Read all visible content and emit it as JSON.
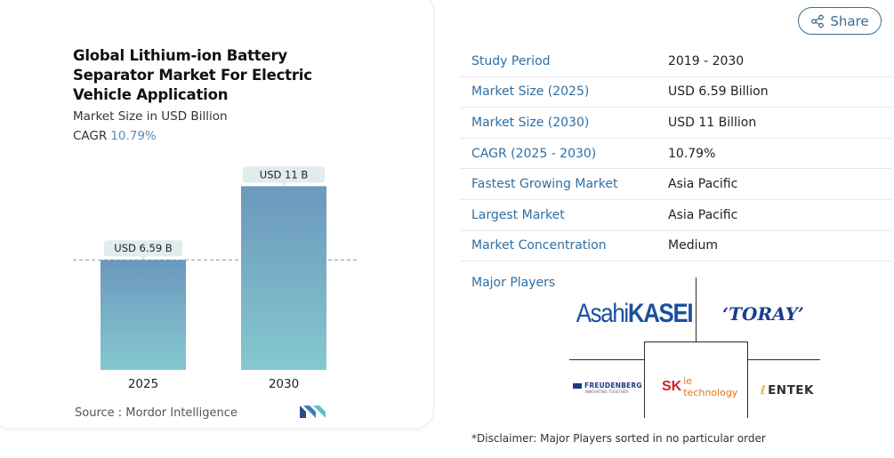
{
  "share": {
    "label": "Share",
    "icon": "share-icon"
  },
  "chart_card": {
    "title": "Global Lithium-ion Battery Separator Market For Electric Vehicle Application",
    "subtitle": "Market Size in USD Billion",
    "cagr_label": "CAGR",
    "cagr_value": "10.79%",
    "source": "Source : Mordor Intelligence",
    "logo": "mordor-intelligence-logo"
  },
  "chart_data": {
    "type": "bar",
    "categories": [
      "2025",
      "2030"
    ],
    "values": [
      6.59,
      11
    ],
    "data_labels": [
      "USD 6.59 B",
      "USD 11 B"
    ],
    "title": "Global Lithium-ion Battery Separator Market For Electric Vehicle Application",
    "subtitle": "Market Size in USD Billion",
    "xlabel": "",
    "ylabel": "",
    "ylim": [
      0,
      11.5
    ],
    "grid": false,
    "reference_line": 6.59,
    "colors": {
      "bar_top": "#6b98bd",
      "bar_bottom": "#85c8cf",
      "label_bg": "#e2ebee",
      "ref_line": "#6e9bc1"
    }
  },
  "overview": {
    "rows": [
      {
        "key": "Study Period",
        "value": "2019 - 2030"
      },
      {
        "key": "Market Size (2025)",
        "value": "USD 6.59 Billion"
      },
      {
        "key": "Market Size (2030)",
        "value": "USD 11 Billion"
      },
      {
        "key": "CAGR (2025 - 2030)",
        "value": "10.79%"
      },
      {
        "key": "Fastest Growing Market",
        "value": "Asia Pacific"
      },
      {
        "key": "Largest Market",
        "value": "Asia Pacific"
      },
      {
        "key": "Market Concentration",
        "value": "Medium"
      }
    ]
  },
  "players": {
    "label": "Major Players",
    "asahi_a": "Asahi",
    "asahi_b": "KASEI",
    "toray": "‘TORAY’",
    "freudenberg": "FREUDENBERG",
    "freudenberg_tag": "INNOVATING TOGETHER",
    "sk_a": "SK",
    "sk_b": "ie technology",
    "entek": "ENTEK"
  },
  "disclaimer": "*Disclaimer: Major Players sorted in no particular order",
  "colors": {
    "accent": "#2f6fa3",
    "share_border": "#3d6b8d"
  }
}
